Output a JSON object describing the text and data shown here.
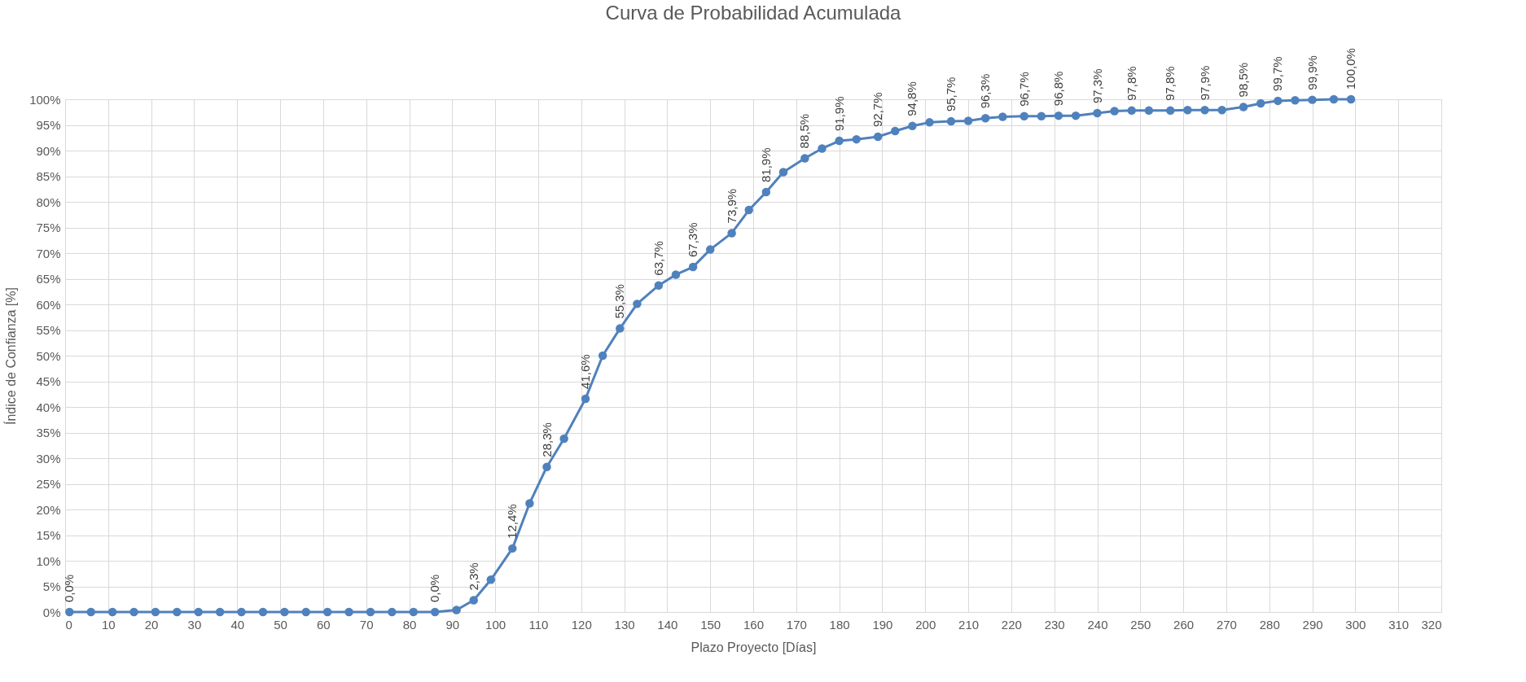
{
  "chart_data": {
    "type": "line",
    "title": "Curva de Probabilidad Acumulada",
    "xlabel": "Plazo Proyecto [Días]",
    "ylabel": "Índice de Confianza [%]",
    "x": [
      1,
      6,
      11,
      16,
      21,
      26,
      31,
      36,
      41,
      46,
      51,
      56,
      61,
      66,
      71,
      76,
      81,
      86,
      91,
      95,
      99,
      104,
      108,
      112,
      116,
      121,
      125,
      129,
      133,
      138,
      142,
      146,
      150,
      155,
      159,
      163,
      167,
      172,
      176,
      180,
      184,
      189,
      193,
      197,
      201,
      206,
      210,
      214,
      218,
      223,
      227,
      231,
      235,
      240,
      244,
      248,
      252,
      257,
      261,
      265,
      269,
      274,
      278,
      282,
      286,
      290,
      295,
      299
    ],
    "series": [
      {
        "color": "#4f81bd",
        "values": [
          0,
          0,
          0,
          0,
          0,
          0,
          0,
          0,
          0,
          0,
          0,
          0,
          0,
          0,
          0,
          0,
          0,
          0,
          0.4,
          2.3,
          6.3,
          12.4,
          21.2,
          28.3,
          33.8,
          41.6,
          50.0,
          55.3,
          60.1,
          63.7,
          65.8,
          67.3,
          70.7,
          73.9,
          78.4,
          81.9,
          85.8,
          88.5,
          90.4,
          91.9,
          92.2,
          92.7,
          93.8,
          94.8,
          95.5,
          95.7,
          95.8,
          96.3,
          96.6,
          96.7,
          96.7,
          96.8,
          96.8,
          97.3,
          97.7,
          97.8,
          97.8,
          97.8,
          97.9,
          97.9,
          97.9,
          98.5,
          99.2,
          99.7,
          99.8,
          99.9,
          100.0,
          100.0
        ],
        "value_labels": [
          "0,0%",
          null,
          null,
          null,
          null,
          null,
          null,
          null,
          null,
          null,
          null,
          null,
          null,
          null,
          null,
          null,
          null,
          "0,0%",
          null,
          "2,3%",
          null,
          "12,4%",
          null,
          "28,3%",
          null,
          "41,6%",
          null,
          "55,3%",
          null,
          "63,7%",
          null,
          "67,3%",
          null,
          "73,9%",
          null,
          "81,9%",
          null,
          "88,5%",
          null,
          "91,9%",
          null,
          "92,7%",
          null,
          "94,8%",
          null,
          "95,7%",
          null,
          "96,3%",
          null,
          "96,7%",
          null,
          "96,8%",
          null,
          "97,3%",
          null,
          "97,8%",
          null,
          "97,8%",
          null,
          "97,9%",
          null,
          "98,5%",
          null,
          "99,7%",
          null,
          "99,9%",
          null,
          "100,0%"
        ]
      }
    ],
    "xlim": [
      0,
      320
    ],
    "xticks": [
      0,
      10,
      20,
      30,
      40,
      50,
      60,
      70,
      80,
      90,
      100,
      110,
      120,
      130,
      140,
      150,
      160,
      170,
      180,
      190,
      200,
      210,
      220,
      230,
      240,
      250,
      260,
      270,
      280,
      290,
      300,
      310,
      320
    ],
    "ylim": [
      0,
      100
    ],
    "yticks": [
      {
        "value": 0,
        "label": "0%"
      },
      {
        "value": 5,
        "label": "5%"
      },
      {
        "value": 10,
        "label": "10%"
      },
      {
        "value": 15,
        "label": "15%"
      },
      {
        "value": 20,
        "label": "20%"
      },
      {
        "value": 25,
        "label": "25%"
      },
      {
        "value": 30,
        "label": "30%"
      },
      {
        "value": 35,
        "label": "35%"
      },
      {
        "value": 40,
        "label": "40%"
      },
      {
        "value": 45,
        "label": "45%"
      },
      {
        "value": 50,
        "label": "50%"
      },
      {
        "value": 55,
        "label": "55%"
      },
      {
        "value": 60,
        "label": "60%"
      },
      {
        "value": 65,
        "label": "65%"
      },
      {
        "value": 70,
        "label": "70%"
      },
      {
        "value": 75,
        "label": "75%"
      },
      {
        "value": 80,
        "label": "80%"
      },
      {
        "value": 85,
        "label": "85%"
      },
      {
        "value": 90,
        "label": "90%"
      },
      {
        "value": 95,
        "label": "95%"
      },
      {
        "value": 100,
        "label": "100%"
      }
    ],
    "grid": true,
    "marker": "circle",
    "line_style": "solid",
    "legend": false
  }
}
